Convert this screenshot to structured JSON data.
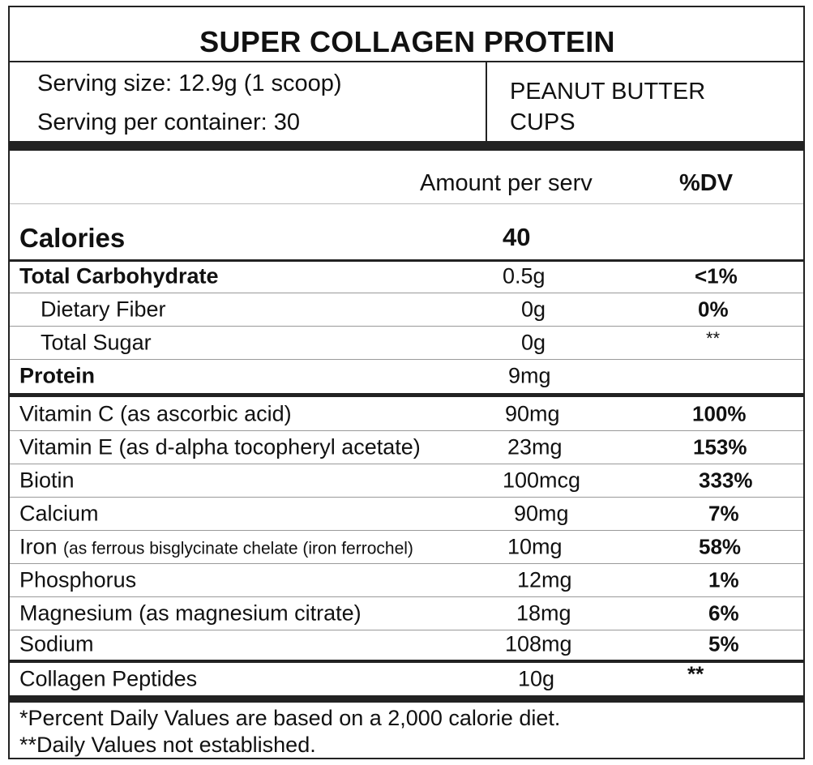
{
  "title": "SUPER COLLAGEN PROTEIN",
  "serving": {
    "size": "Serving size: 12.9g (1 scoop)",
    "per_container": "Serving per container: 30",
    "flavor_line1": "PEANUT BUTTER",
    "flavor_line2": "CUPS"
  },
  "header": {
    "amount": "Amount per serv",
    "dv": "%DV"
  },
  "calories": {
    "label": "Calories",
    "value": "40"
  },
  "macros": [
    {
      "name": "Total Carbohydrate",
      "amount": "0.5g",
      "dv": "<1%"
    },
    {
      "name": "Dietary Fiber",
      "amount": "0g",
      "dv": "0%"
    },
    {
      "name": "Total Sugar",
      "amount": "0g",
      "dv": "**"
    },
    {
      "name": "Protein",
      "amount": "9mg",
      "dv": ""
    }
  ],
  "nutrients": [
    {
      "name": "Vitamin C (as ascorbic acid)",
      "amount": "90mg",
      "dv": "100%"
    },
    {
      "name": "Vitamin E (as d-alpha tocopheryl acetate)",
      "amount": "23mg",
      "dv": "153%"
    },
    {
      "name": "Biotin",
      "amount": "100mcg",
      "dv": "333%"
    },
    {
      "name": "Calcium",
      "amount": "90mg",
      "dv": "7%"
    },
    {
      "name": "Iron",
      "qualifier": "(as ferrous bisglycinate chelate (iron ferrochel)",
      "amount": "10mg",
      "dv": "58%"
    },
    {
      "name": "Phosphorus",
      "amount": "12mg",
      "dv": "1%"
    },
    {
      "name": "Magnesium (as magnesium citrate)",
      "amount": "18mg",
      "dv": "6%"
    },
    {
      "name": "Sodium",
      "amount": "108mg",
      "dv": "5%"
    }
  ],
  "other": {
    "name": "Collagen Peptides",
    "amount": "10g",
    "dv": "**"
  },
  "footnotes": {
    "line1": "*Percent Daily Values are based on a 2,000 calorie diet.",
    "line2": "**Daily Values not established."
  }
}
